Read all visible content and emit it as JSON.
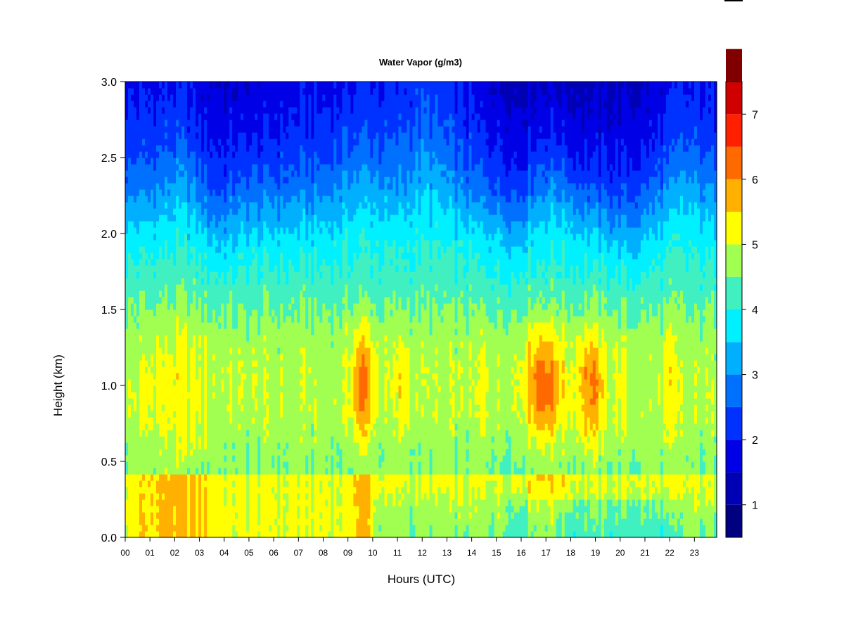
{
  "chart_data": {
    "type": "heatmap",
    "title": "Water Vapor (g/m3)",
    "xlabel": "Hours (UTC)",
    "ylabel": "Height (km)",
    "xlim": [
      0,
      23.9
    ],
    "ylim": [
      0.0,
      3.0
    ],
    "x_ticks": [
      "00",
      "01",
      "02",
      "03",
      "04",
      "05",
      "06",
      "07",
      "08",
      "09",
      "10",
      "11",
      "12",
      "13",
      "14",
      "15",
      "16",
      "17",
      "18",
      "19",
      "20",
      "21",
      "22",
      "23"
    ],
    "y_ticks": [
      "0.0",
      "0.5",
      "1.0",
      "1.5",
      "2.0",
      "2.5",
      "3.0"
    ],
    "colorbar": {
      "range": [
        0.5,
        7.5
      ],
      "step": 0.5,
      "ticks": [
        "1",
        "2",
        "3",
        "4",
        "5",
        "6",
        "7"
      ],
      "colors": [
        "#000080",
        "#0000b4",
        "#0000e6",
        "#0032ff",
        "#0070ff",
        "#00b0ff",
        "#00f0ff",
        "#40f0c0",
        "#a0ff50",
        "#ffff00",
        "#ffb000",
        "#ff6a00",
        "#ff2000",
        "#d00000",
        "#800000"
      ]
    },
    "field_summary": {
      "surface_layer_0_0.4km": "approx 4.5-5.5 g/m3 (yellow/orange), higher before 10 UTC",
      "mid_layer_0.5_1.5km": "approx 4-5 g/m3, peaks 5.5-6.5 g/m3 near 1.0 km around 09-10, 16-17.5 and 18-19 UTC",
      "1.5_2.2km": "approx 3-4 g/m3",
      "2.2_3.0km": "approx 1-2.5 g/m3, driest (<1) near 3 km around 15-21 UTC"
    }
  }
}
